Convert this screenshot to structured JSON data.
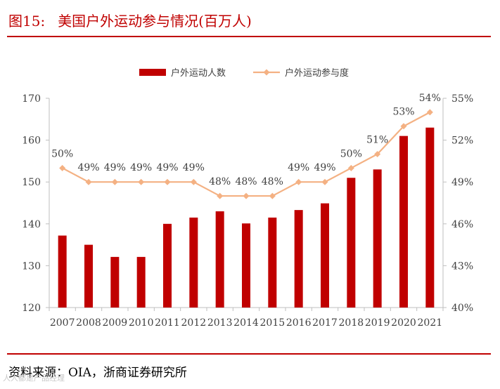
{
  "header": {
    "figure_label": "图15:",
    "title": "美国户外运动参与情况(百万人)"
  },
  "footer": {
    "source": "资料来源：OIA，浙商证券研究所",
    "watermark": "人人都是产品经理"
  },
  "colors": {
    "bar": "#c00000",
    "line": "#f4b183",
    "accent": "#c00000",
    "axis": "#bfbfbf",
    "text": "#404040"
  },
  "chart_data": {
    "type": "bar",
    "categories": [
      "2007",
      "2008",
      "2009",
      "2010",
      "2011",
      "2012",
      "2013",
      "2014",
      "2015",
      "2016",
      "2017",
      "2018",
      "2019",
      "2020",
      "2021"
    ],
    "series": [
      {
        "name": "户外运动人数",
        "type": "bar",
        "axis": "left",
        "values": [
          137.2,
          135.0,
          132.1,
          132.1,
          140.0,
          141.5,
          143.0,
          140.1,
          141.5,
          143.3,
          144.9,
          151.0,
          153.0,
          161.0,
          163.0
        ]
      },
      {
        "name": "户外运动参与度",
        "type": "line",
        "axis": "right",
        "values": [
          50,
          49,
          49,
          49,
          49,
          49,
          48,
          48,
          48,
          49,
          49,
          50,
          51,
          53,
          54
        ],
        "labels": [
          "50%",
          "49%",
          "49%",
          "49%",
          "49%",
          "49%",
          "48%",
          "48%",
          "48%",
          "49%",
          "49%",
          "50%",
          "51%",
          "53%",
          "54%"
        ]
      }
    ],
    "ylim": [
      120,
      170
    ],
    "yticks": [
      "120",
      "130",
      "140",
      "150",
      "160",
      "170"
    ],
    "y2lim": [
      40,
      55
    ],
    "y2ticks": [
      "40%",
      "43%",
      "46%",
      "49%",
      "52%",
      "55%"
    ],
    "legend_position": "top-center",
    "grid": false
  }
}
